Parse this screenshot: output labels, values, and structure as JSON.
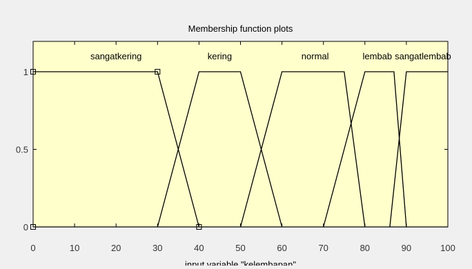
{
  "window": {
    "background": "#f0f0f0"
  },
  "chart_data": {
    "type": "line",
    "title": "Membership function plots",
    "xlabel": "input variable \"kelembapan\"",
    "ylabel": "",
    "xlim": [
      0,
      100
    ],
    "ylim": [
      0,
      1
    ],
    "xticks": [
      0,
      10,
      20,
      30,
      40,
      50,
      60,
      70,
      80,
      90,
      100
    ],
    "xtick_labels": [
      "0",
      "10",
      "20",
      "30",
      "40",
      "50",
      "60",
      "70",
      "80",
      "90",
      "100"
    ],
    "yticks": [
      0,
      0.5,
      1
    ],
    "ytick_labels": [
      "0",
      "0.5",
      "1"
    ],
    "grid": false,
    "legend": "none",
    "colors": {
      "plot_background": "#ffffcc",
      "axes_color": "#000000",
      "line_color": "#000000",
      "figure_background": "#f0f0f0"
    },
    "series": [
      {
        "name": "sangatkering",
        "shape": "trapmf",
        "x": [
          0,
          0,
          30,
          40
        ],
        "y": [
          1,
          1,
          1,
          0
        ],
        "extend": "left",
        "label_x": 20
      },
      {
        "name": "kering",
        "shape": "trapmf",
        "x": [
          30,
          40,
          50,
          60
        ],
        "y": [
          0,
          1,
          1,
          0
        ],
        "label_x": 45
      },
      {
        "name": "normal",
        "shape": "trapmf",
        "x": [
          50,
          60,
          75,
          80
        ],
        "y": [
          0,
          1,
          1,
          0
        ],
        "label_x": 68
      },
      {
        "name": "lembab",
        "shape": "trapmf",
        "x": [
          70,
          80,
          87,
          90
        ],
        "y": [
          0,
          1,
          1,
          0
        ],
        "label_x": 83
      },
      {
        "name": "sangatlembab",
        "shape": "trapmf",
        "x": [
          86,
          90,
          100,
          100
        ],
        "y": [
          0,
          1,
          1,
          1
        ],
        "extend": "right",
        "label_x": 94
      }
    ],
    "selected_series": "sangatkering",
    "selection_markers": [
      {
        "x": 0,
        "y": 1
      },
      {
        "x": 30,
        "y": 1
      },
      {
        "x": 40,
        "y": 0
      },
      {
        "x": 0,
        "y": 0
      }
    ]
  }
}
